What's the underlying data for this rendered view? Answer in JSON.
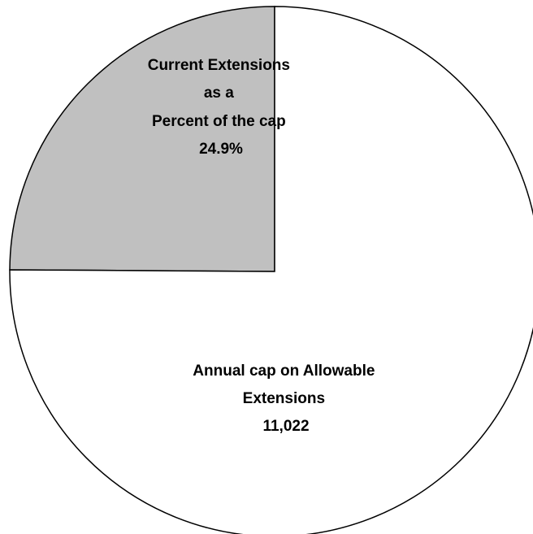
{
  "chart_data": {
    "type": "pie",
    "slices": [
      {
        "label_lines": [
          "Current Extensions",
          "as a",
          "Percent of the cap"
        ],
        "value_text": "24.9%",
        "percent": 24.9,
        "color": "#c0c0c0"
      },
      {
        "label_lines": [
          "Annual cap on Allowable",
          "Extensions"
        ],
        "value_text": "11,022",
        "value": 11022,
        "percent": 75.1,
        "color": "#ffffff"
      }
    ],
    "start_angle": "12 o'clock, clockwise",
    "border_color": "#000000",
    "legend": "none"
  }
}
